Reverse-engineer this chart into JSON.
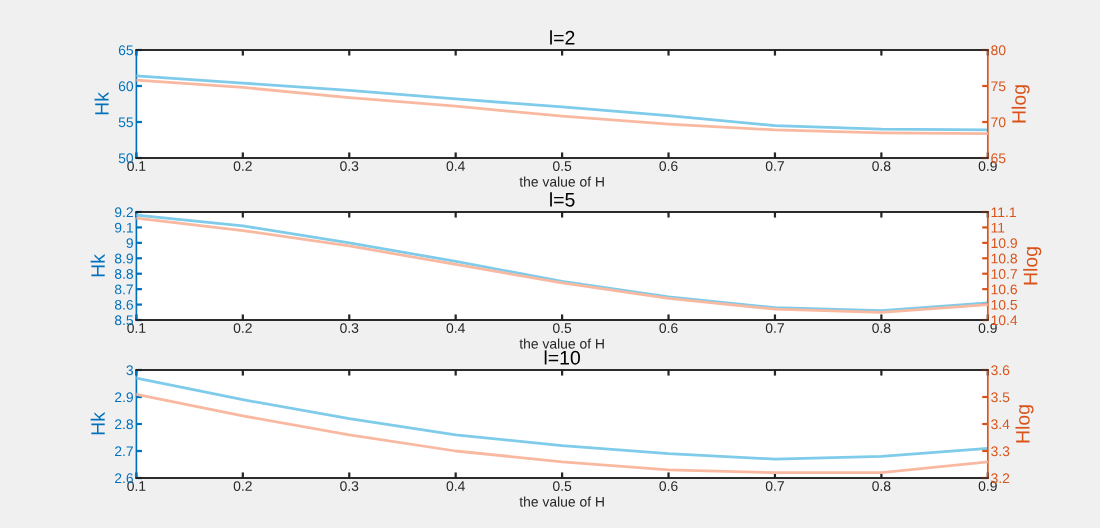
{
  "chart_data": [
    {
      "type": "line",
      "title": "l=2",
      "xlabel": "the value of H",
      "ylabel": "Hk",
      "y2label": "Hlog",
      "x": [
        0.1,
        0.2,
        0.3,
        0.4,
        0.5,
        0.6,
        0.7,
        0.8,
        0.9
      ],
      "xlim": [
        0.1,
        0.9
      ],
      "xticks": [
        0.1,
        0.2,
        0.3,
        0.4,
        0.5,
        0.6,
        0.7,
        0.8,
        0.9
      ],
      "ylim": [
        50,
        65
      ],
      "yticks": [
        50,
        55,
        60,
        65
      ],
      "y2lim": [
        65,
        80
      ],
      "y2ticks": [
        65,
        70,
        75,
        80
      ],
      "series": [
        {
          "color": "#7fcbea",
          "values": [
            61.4,
            60.4,
            59.4,
            58.2,
            57.1,
            55.9,
            54.5,
            54.0,
            53.9
          ]
        },
        {
          "color": "#f9b9a0",
          "axis": "y2",
          "values": [
            75.8,
            74.8,
            73.4,
            72.2,
            70.8,
            69.7,
            68.9,
            68.5,
            68.4
          ]
        }
      ]
    },
    {
      "type": "line",
      "title": "l=5",
      "xlabel": "the value of H",
      "ylabel": "Hk",
      "y2label": "Hlog",
      "x": [
        0.1,
        0.2,
        0.3,
        0.4,
        0.5,
        0.6,
        0.7,
        0.8,
        0.9
      ],
      "xlim": [
        0.1,
        0.9
      ],
      "xticks": [
        0.1,
        0.2,
        0.3,
        0.4,
        0.5,
        0.6,
        0.7,
        0.8,
        0.9
      ],
      "ylim": [
        8.5,
        9.2
      ],
      "yticks": [
        8.5,
        8.6,
        8.7,
        8.8,
        8.9,
        9,
        9.1,
        9.2
      ],
      "y2lim": [
        10.4,
        11.1
      ],
      "y2ticks": [
        10.4,
        10.5,
        10.6,
        10.7,
        10.8,
        10.9,
        11,
        11.1
      ],
      "series": [
        {
          "color": "#7fcbea",
          "values": [
            9.18,
            9.11,
            9.0,
            8.88,
            8.75,
            8.65,
            8.58,
            8.56,
            8.61
          ]
        },
        {
          "color": "#f9b9a0",
          "axis": "y2",
          "values": [
            11.06,
            10.98,
            10.88,
            10.76,
            10.64,
            10.54,
            10.47,
            10.45,
            10.5
          ]
        }
      ]
    },
    {
      "type": "line",
      "title": "l=10",
      "xlabel": "the value of H",
      "ylabel": "Hk",
      "y2label": "Hlog",
      "x": [
        0.1,
        0.2,
        0.3,
        0.4,
        0.5,
        0.6,
        0.7,
        0.8,
        0.9
      ],
      "xlim": [
        0.1,
        0.9
      ],
      "xticks": [
        0.1,
        0.2,
        0.3,
        0.4,
        0.5,
        0.6,
        0.7,
        0.8,
        0.9
      ],
      "ylim": [
        2.6,
        3
      ],
      "yticks": [
        2.6,
        2.7,
        2.8,
        2.9,
        3
      ],
      "y2lim": [
        3.2,
        3.6
      ],
      "y2ticks": [
        3.2,
        3.3,
        3.4,
        3.5,
        3.6
      ],
      "series": [
        {
          "color": "#7fcbea",
          "values": [
            2.97,
            2.89,
            2.82,
            2.76,
            2.72,
            2.69,
            2.67,
            2.68,
            2.71
          ]
        },
        {
          "color": "#f9b9a0",
          "axis": "y2",
          "values": [
            3.51,
            3.43,
            3.36,
            3.3,
            3.26,
            3.23,
            3.22,
            3.22,
            3.26
          ]
        }
      ]
    }
  ]
}
